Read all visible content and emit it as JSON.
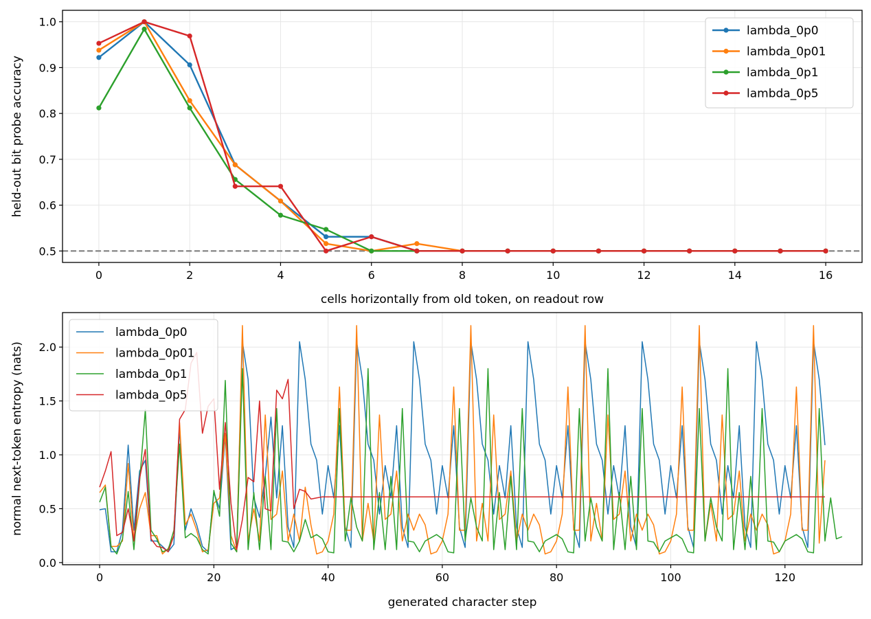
{
  "chart_data": [
    {
      "type": "line",
      "xlabel": "cells horizontally from old token, on readout row",
      "ylabel": "held-out bit probe accuracy",
      "xlim": [
        -0.8,
        16.8
      ],
      "ylim": [
        0.475,
        1.025
      ],
      "xticks": [
        0,
        2,
        4,
        6,
        8,
        10,
        12,
        14,
        16
      ],
      "yticks": [
        0.5,
        0.6,
        0.7,
        0.8,
        0.9,
        1.0
      ],
      "xtick_labels": [
        "0",
        "2",
        "4",
        "6",
        "8",
        "10",
        "12",
        "14",
        "16"
      ],
      "ytick_labels": [
        "0.5",
        "0.6",
        "0.7",
        "0.8",
        "0.9",
        "1.0"
      ],
      "grid": true,
      "legend_position": "upper right",
      "markers": true,
      "reference_line": {
        "y": 0.5,
        "style": "dashed",
        "color": "#7f7f7f"
      },
      "x": [
        0,
        1,
        2,
        3,
        4,
        5,
        6,
        7,
        8,
        9,
        10,
        11,
        12,
        13,
        14,
        15,
        16
      ],
      "series": [
        {
          "name": "lambda_0p0",
          "color": "#1f77b4",
          "values": [
            0.922,
            1.0,
            0.906,
            0.688,
            0.609,
            0.531,
            0.531,
            0.5,
            0.5,
            0.5,
            0.5,
            0.5,
            0.5,
            0.5,
            0.5,
            0.5,
            0.5
          ]
        },
        {
          "name": "lambda_0p01",
          "color": "#ff7f0e",
          "values": [
            0.938,
            1.0,
            0.828,
            0.688,
            0.609,
            0.516,
            0.5,
            0.516,
            0.5,
            0.5,
            0.5,
            0.5,
            0.5,
            0.5,
            0.5,
            0.5,
            0.5
          ]
        },
        {
          "name": "lambda_0p1",
          "color": "#2ca02c",
          "values": [
            0.812,
            0.984,
            0.812,
            0.656,
            0.578,
            0.547,
            0.5,
            0.5,
            0.5,
            0.5,
            0.5,
            0.5,
            0.5,
            0.5,
            0.5,
            0.5,
            0.5
          ]
        },
        {
          "name": "lambda_0p5",
          "color": "#d62728",
          "values": [
            0.953,
            1.0,
            0.969,
            0.641,
            0.641,
            0.5,
            0.531,
            0.5,
            0.5,
            0.5,
            0.5,
            0.5,
            0.5,
            0.5,
            0.5,
            0.5,
            0.5
          ]
        }
      ]
    },
    {
      "type": "line",
      "xlabel": "generated character step",
      "ylabel": "normal next-token entropy (nats)",
      "xlim": [
        -6.5,
        133.5
      ],
      "ylim": [
        -0.02,
        2.32
      ],
      "xticks": [
        0,
        20,
        40,
        60,
        80,
        100,
        120
      ],
      "yticks": [
        0.0,
        0.5,
        1.0,
        1.5,
        2.0
      ],
      "xtick_labels": [
        "0",
        "20",
        "40",
        "60",
        "80",
        "100",
        "120"
      ],
      "ytick_labels": [
        "0.0",
        "0.5",
        "1.0",
        "1.5",
        "2.0"
      ],
      "grid": true,
      "legend_position": "upper left",
      "markers": false,
      "x_start": 0,
      "series": [
        {
          "name": "lambda_0p0",
          "color": "#1f77b4",
          "values": [
            0.49,
            0.5,
            0.1,
            0.1,
            0.3,
            1.09,
            0.3,
            0.85,
            0.95,
            0.2,
            0.2,
            0.15,
            0.1,
            0.17,
            1.25,
            0.3,
            0.5,
            0.35,
            0.15,
            0.1,
            0.65,
            0.5,
            1.18,
            0.12,
            0.15,
            2.05,
            1.7,
            0.6,
            0.42,
            0.8,
            1.35,
            0.6,
            1.27,
            0.33,
            0.14,
            2.05,
            1.7,
            1.1,
            0.95,
            0.45,
            0.9,
            0.6,
            1.27,
            0.33,
            0.14,
            2.05,
            1.7,
            1.1,
            0.95,
            0.45,
            0.9,
            0.6,
            1.27,
            0.33,
            0.14,
            2.05,
            1.7,
            1.1,
            0.95,
            0.45,
            0.9,
            0.6,
            1.27,
            0.33,
            0.14,
            2.05,
            1.7,
            1.1,
            0.95,
            0.45,
            0.9,
            0.6,
            1.27,
            0.33,
            0.14,
            2.05,
            1.7,
            1.1,
            0.95,
            0.45,
            0.9,
            0.6,
            1.27,
            0.33,
            0.14,
            2.05,
            1.7,
            1.1,
            0.95,
            0.45,
            0.9,
            0.6,
            1.27,
            0.33,
            0.14,
            2.05,
            1.7,
            1.1,
            0.95,
            0.45,
            0.9,
            0.6,
            1.27,
            0.33,
            0.14,
            2.05,
            1.7,
            1.1,
            0.95,
            0.45,
            0.9,
            0.6,
            1.27,
            0.33,
            0.14,
            2.05,
            1.7,
            1.1,
            0.95,
            0.45,
            0.9,
            0.6,
            1.27,
            0.33,
            0.14,
            2.05,
            1.7,
            1.09
          ]
        },
        {
          "name": "lambda_0p01",
          "color": "#ff7f0e",
          "values": [
            0.65,
            0.72,
            0.15,
            0.15,
            0.2,
            0.92,
            0.2,
            0.5,
            0.65,
            0.25,
            0.25,
            0.08,
            0.13,
            0.25,
            1.3,
            0.35,
            0.45,
            0.3,
            0.1,
            0.12,
            0.55,
            0.6,
            1.2,
            0.25,
            0.1,
            2.2,
            0.2,
            0.5,
            0.2,
            1.37,
            0.4,
            0.45,
            0.85,
            0.2,
            0.45,
            0.2,
            0.7,
            0.35,
            0.08,
            0.1,
            0.2,
            0.45,
            1.63,
            0.3,
            0.3,
            2.2,
            0.2,
            0.55,
            0.2,
            1.37,
            0.4,
            0.45,
            0.85,
            0.2,
            0.45,
            0.3,
            0.45,
            0.35,
            0.08,
            0.1,
            0.2,
            0.45,
            1.63,
            0.3,
            0.3,
            2.2,
            0.2,
            0.55,
            0.2,
            1.37,
            0.4,
            0.45,
            0.85,
            0.2,
            0.45,
            0.3,
            0.45,
            0.35,
            0.08,
            0.1,
            0.2,
            0.45,
            1.63,
            0.3,
            0.3,
            2.2,
            0.2,
            0.55,
            0.2,
            1.37,
            0.4,
            0.45,
            0.85,
            0.2,
            0.45,
            0.3,
            0.45,
            0.35,
            0.08,
            0.1,
            0.2,
            0.45,
            1.63,
            0.3,
            0.3,
            2.2,
            0.2,
            0.55,
            0.2,
            1.37,
            0.4,
            0.45,
            0.85,
            0.2,
            0.45,
            0.3,
            0.45,
            0.35,
            0.08,
            0.1,
            0.2,
            0.45,
            1.63,
            0.3,
            0.3,
            2.2,
            0.18,
            0.95
          ]
        },
        {
          "name": "lambda_0p1",
          "color": "#2ca02c",
          "values": [
            0.56,
            0.7,
            0.15,
            0.08,
            0.22,
            0.66,
            0.12,
            0.75,
            1.42,
            0.3,
            0.22,
            0.1,
            0.12,
            0.3,
            1.1,
            0.23,
            0.27,
            0.23,
            0.12,
            0.08,
            0.67,
            0.43,
            1.69,
            0.18,
            0.1,
            1.8,
            0.12,
            0.65,
            0.12,
            0.8,
            0.12,
            1.43,
            0.2,
            0.19,
            0.1,
            0.2,
            0.4,
            0.23,
            0.26,
            0.22,
            0.1,
            0.09,
            1.43,
            0.2,
            0.6,
            0.33,
            0.2,
            1.8,
            0.12,
            0.65,
            0.12,
            0.8,
            0.12,
            1.43,
            0.2,
            0.19,
            0.1,
            0.2,
            0.23,
            0.26,
            0.22,
            0.1,
            0.09,
            1.43,
            0.2,
            0.6,
            0.33,
            0.2,
            1.8,
            0.12,
            0.65,
            0.12,
            0.8,
            0.12,
            1.43,
            0.2,
            0.19,
            0.1,
            0.2,
            0.23,
            0.26,
            0.22,
            0.1,
            0.09,
            1.43,
            0.2,
            0.6,
            0.33,
            0.2,
            1.8,
            0.12,
            0.65,
            0.12,
            0.8,
            0.12,
            1.43,
            0.2,
            0.19,
            0.1,
            0.2,
            0.23,
            0.26,
            0.22,
            0.1,
            0.09,
            1.43,
            0.2,
            0.6,
            0.33,
            0.2,
            1.8,
            0.12,
            0.65,
            0.12,
            0.8,
            0.12,
            1.43,
            0.2,
            0.19,
            0.1,
            0.2,
            0.23,
            0.26,
            0.22,
            0.1,
            0.09,
            1.43,
            0.2,
            0.6,
            0.22,
            0.24
          ]
        },
        {
          "name": "lambda_0p5",
          "color": "#d62728",
          "values": [
            0.7,
            0.85,
            1.03,
            0.25,
            0.28,
            0.5,
            0.2,
            0.78,
            1.05,
            0.22,
            0.15,
            0.14,
            0.1,
            0.25,
            1.33,
            1.42,
            1.85,
            1.95,
            1.2,
            1.45,
            1.52,
            0.68,
            1.3,
            0.55,
            0.12,
            0.4,
            0.79,
            0.75,
            1.5,
            0.5,
            0.48,
            1.6,
            1.52,
            1.7,
            0.5,
            0.68,
            0.66,
            0.59,
            0.6,
            0.61,
            0.61,
            0.61,
            0.61,
            0.61,
            0.61,
            0.61,
            0.61,
            0.61,
            0.61,
            0.61,
            0.61,
            0.61,
            0.61,
            0.61,
            0.61,
            0.61,
            0.61,
            0.61,
            0.61,
            0.61,
            0.61,
            0.61,
            0.61,
            0.61,
            0.61,
            0.61,
            0.61,
            0.61,
            0.61,
            0.61,
            0.61,
            0.61,
            0.61,
            0.61,
            0.61,
            0.61,
            0.61,
            0.61,
            0.61,
            0.61,
            0.61,
            0.61,
            0.61,
            0.61,
            0.61,
            0.61,
            0.61,
            0.61,
            0.61,
            0.61,
            0.61,
            0.61,
            0.61,
            0.61,
            0.61,
            0.61,
            0.61,
            0.61,
            0.61,
            0.61,
            0.61,
            0.61,
            0.61,
            0.61,
            0.61,
            0.61,
            0.61,
            0.61,
            0.61,
            0.61,
            0.61,
            0.61,
            0.61,
            0.61,
            0.61,
            0.61,
            0.61,
            0.61,
            0.61,
            0.61,
            0.61,
            0.61,
            0.61,
            0.61,
            0.61,
            0.61,
            0.61,
            0.61
          ]
        }
      ]
    }
  ]
}
